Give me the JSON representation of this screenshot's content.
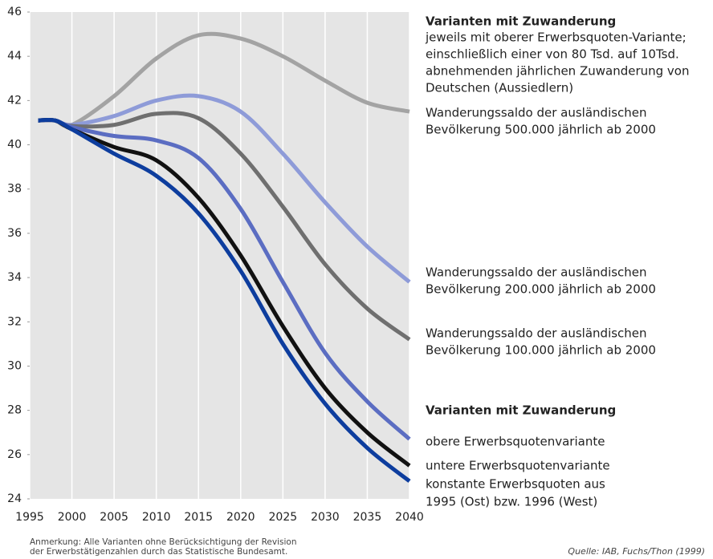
{
  "chart_data": {
    "type": "line",
    "x": [
      1996,
      1998,
      2000,
      2005,
      2010,
      2015,
      2020,
      2025,
      2030,
      2035,
      2040
    ],
    "series": [
      {
        "color": "#a3a3a3",
        "values": [
          41.1,
          41.1,
          40.9,
          42.2,
          43.9,
          44.95,
          44.8,
          44.0,
          42.9,
          41.9,
          41.5
        ]
      },
      {
        "color": "#8e9bd8",
        "values": [
          41.1,
          41.1,
          40.9,
          41.3,
          42.0,
          42.2,
          41.5,
          39.6,
          37.4,
          35.4,
          33.8
        ]
      },
      {
        "color": "#6f6f6f",
        "values": [
          41.1,
          41.1,
          40.85,
          40.9,
          41.4,
          41.2,
          39.6,
          37.2,
          34.6,
          32.6,
          31.2
        ]
      },
      {
        "color": "#5b6dc2",
        "values": [
          41.1,
          41.1,
          40.8,
          40.4,
          40.2,
          39.4,
          37.1,
          33.8,
          30.6,
          28.4,
          26.7
        ]
      },
      {
        "color": "#111111",
        "values": [
          41.1,
          41.1,
          40.7,
          39.9,
          39.3,
          37.6,
          35.0,
          31.8,
          29.0,
          27.0,
          25.5
        ]
      },
      {
        "color": "#0d3d9e",
        "values": [
          41.1,
          41.1,
          40.7,
          39.6,
          38.6,
          36.9,
          34.3,
          31.0,
          28.3,
          26.3,
          24.8
        ]
      }
    ],
    "xlim": [
      1995,
      2040
    ],
    "xticks": [
      1995,
      2000,
      2005,
      2010,
      2015,
      2020,
      2025,
      2030,
      2035,
      2040
    ],
    "ylim": [
      24,
      46
    ],
    "yticks": [
      24,
      26,
      28,
      30,
      32,
      34,
      36,
      38,
      40,
      42,
      44,
      46
    ],
    "grid": true,
    "annotations": [
      {
        "bold": true,
        "lines": [
          "Varianten mit Zuwanderung"
        ]
      },
      {
        "bold": false,
        "lines": [
          "jeweils mit oberer Erwerbsquoten-Variante;",
          "einschließlich einer von 80 Tsd. auf 10Tsd.",
          "abnehmenden jährlichen Zuwanderung von",
          "Deutschen (Aussiedlern)"
        ]
      },
      {
        "bold": false,
        "lines": [
          "Wanderungssaldo der ausländischen",
          "Bevölkerung 500.000 jährlich ab 2000"
        ]
      },
      {
        "bold": false,
        "lines": [
          "Wanderungssaldo der ausländischen",
          "Bevölkerung 200.000 jährlich ab 2000"
        ]
      },
      {
        "bold": false,
        "lines": [
          "Wanderungssaldo der ausländischen",
          "Bevölkerung 100.000 jährlich ab 2000"
        ]
      },
      {
        "bold": true,
        "lines": [
          "Varianten mit Zuwanderung"
        ]
      },
      {
        "bold": false,
        "lines": [
          "obere Erwerbsquotenvariante"
        ]
      },
      {
        "bold": false,
        "lines": [
          "untere Erwerbsquotenvariante"
        ]
      },
      {
        "bold": false,
        "lines": [
          "konstante Erwerbsquoten aus",
          "1995 (Ost) bzw. 1996 (West)"
        ]
      }
    ],
    "note": [
      "Anmerkung: Alle Varianten ohne Berücksichtigung der Revision",
      "der Erwerbstätigenzahlen durch das Statistische Bundesamt."
    ],
    "source": "Quelle: IAB, Fuchs/Thon (1999)"
  }
}
